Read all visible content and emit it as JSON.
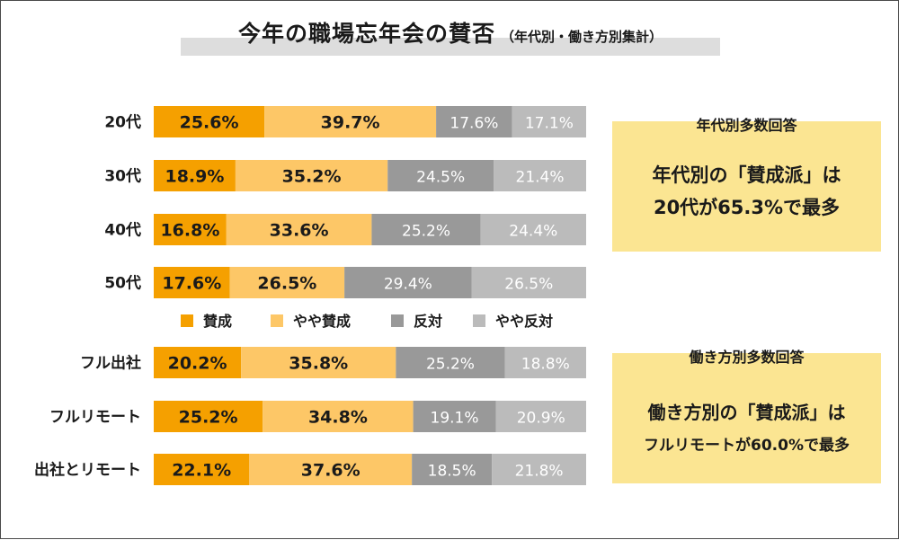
{
  "title": {
    "main": "今年の職場忘年会の賛否",
    "sub": "（年代別・働き方別集計）"
  },
  "colors": {
    "agree": "#f5a000",
    "somewhat_agree": "#fdc767",
    "disagree": "#999999",
    "somewhat_disagree": "#bbbbbb",
    "note_bg": "#fbe592"
  },
  "chart_data": {
    "type": "bar",
    "orientation": "horizontal",
    "stacked": true,
    "unit": "%",
    "categories": [
      "20代",
      "30代",
      "40代",
      "50代",
      "フル出社",
      "フルリモート",
      "出社とリモート"
    ],
    "series": [
      {
        "name": "賛成",
        "values": [
          25.6,
          18.9,
          16.8,
          17.6,
          20.2,
          25.2,
          22.1
        ]
      },
      {
        "name": "やや賛成",
        "values": [
          39.7,
          35.2,
          33.6,
          26.5,
          35.8,
          34.8,
          37.6
        ]
      },
      {
        "name": "反対",
        "values": [
          17.6,
          24.5,
          25.2,
          29.4,
          25.2,
          19.1,
          18.5
        ]
      },
      {
        "name": "やや反対",
        "values": [
          17.1,
          21.4,
          24.4,
          26.5,
          18.8,
          20.9,
          21.8
        ]
      }
    ],
    "legend_position": "middle, between 50代 and フル出社",
    "grid": false
  },
  "notes": [
    {
      "heading": "年代別多数回答",
      "line1": "年代別の「賛成派」は",
      "line2": "20代が65.3%で最多"
    },
    {
      "heading": "働き方別多数回答",
      "line1": "働き方別の「賛成派」は",
      "line2": "フルリモートが60.0%で最多"
    }
  ]
}
